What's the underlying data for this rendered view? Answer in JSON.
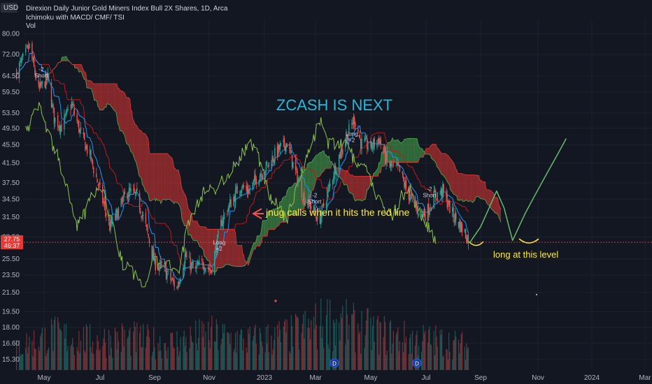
{
  "header": {
    "currency": "USD",
    "title": "Direxion Daily Junior Gold Miners Index Bull 2X Shares, 1D, Arca",
    "indicators": "Ichimoku with MACD/ CMF/ TSI",
    "vol_label": "Vol"
  },
  "price_badge": {
    "price": "27.75",
    "countdown": "46:37"
  },
  "colors": {
    "background": "#131722",
    "up": "#26a69a",
    "down": "#ef5350",
    "cloud_bull": "#4caf50",
    "cloud_bear": "#e53935",
    "lagging_line": "#8bc34a",
    "conversion_line": "#2196f3",
    "base_line": "#b71c1c",
    "annotation_teal": "#29b6d8",
    "annotation_yellow": "#ffeb3b",
    "projection": "#66bb6a",
    "badge": "#e53935"
  },
  "annotations": {
    "headline": "ZCASH IS NEXT",
    "red_line_note": "jnug calls when it hits the red line",
    "long_note": "long at this level"
  },
  "chart_data": {
    "type": "candlestick",
    "y_scale": "log",
    "ylim": [
      14.5,
      86
    ],
    "y_ticks": [
      15.3,
      16.6,
      18.0,
      19.5,
      21.5,
      23.5,
      25.5,
      28.5,
      31.5,
      34.5,
      37.5,
      41.5,
      45.5,
      49.5,
      53.5,
      59.5,
      64.5,
      72.0,
      80.0
    ],
    "x_ticks": [
      "May",
      "Jul",
      "Sep",
      "Nov",
      "2023",
      "Mar",
      "May",
      "Jul",
      "Sep",
      "Nov",
      "2024",
      "Mar"
    ],
    "last_price": 27.75,
    "price_path": [
      [
        "2022-04-01",
        66
      ],
      [
        "2022-04-15",
        75
      ],
      [
        "2022-04-25",
        60
      ],
      [
        "2022-05-05",
        64
      ],
      [
        "2022-05-12",
        52
      ],
      [
        "2022-05-20",
        50
      ],
      [
        "2022-05-31",
        56
      ],
      [
        "2022-06-10",
        48
      ],
      [
        "2022-06-20",
        43
      ],
      [
        "2022-07-01",
        36
      ],
      [
        "2022-07-12",
        30
      ],
      [
        "2022-07-20",
        32
      ],
      [
        "2022-08-01",
        36
      ],
      [
        "2022-08-12",
        35
      ],
      [
        "2022-08-22",
        30
      ],
      [
        "2022-09-01",
        25
      ],
      [
        "2022-09-12",
        24
      ],
      [
        "2022-09-26",
        22
      ],
      [
        "2022-10-05",
        26
      ],
      [
        "2022-10-15",
        24
      ],
      [
        "2022-10-25",
        25
      ],
      [
        "2022-11-03",
        24
      ],
      [
        "2022-11-15",
        31
      ],
      [
        "2022-11-25",
        34
      ],
      [
        "2022-12-05",
        37
      ],
      [
        "2022-12-15",
        36
      ],
      [
        "2022-12-25",
        39
      ],
      [
        "2023-01-05",
        41
      ],
      [
        "2023-01-15",
        44
      ],
      [
        "2023-01-27",
        46
      ],
      [
        "2023-02-05",
        40
      ],
      [
        "2023-02-15",
        35
      ],
      [
        "2023-02-25",
        33
      ],
      [
        "2023-03-05",
        31
      ],
      [
        "2023-03-15",
        36
      ],
      [
        "2023-03-25",
        42
      ],
      [
        "2023-04-05",
        48
      ],
      [
        "2023-04-13",
        52
      ],
      [
        "2023-04-20",
        46
      ],
      [
        "2023-05-01",
        45
      ],
      [
        "2023-05-10",
        47
      ],
      [
        "2023-05-20",
        41
      ],
      [
        "2023-06-01",
        40
      ],
      [
        "2023-06-10",
        36
      ],
      [
        "2023-06-20",
        33
      ],
      [
        "2023-07-01",
        32
      ],
      [
        "2023-07-10",
        35
      ],
      [
        "2023-07-20",
        36
      ],
      [
        "2023-07-31",
        32
      ],
      [
        "2023-08-10",
        30
      ],
      [
        "2023-08-20",
        27.75
      ]
    ],
    "projection_path": [
      [
        "2023-08-20",
        27.75
      ],
      [
        "2023-09-01",
        30
      ],
      [
        "2023-09-10",
        33
      ],
      [
        "2023-09-18",
        36
      ],
      [
        "2023-09-26",
        33
      ],
      [
        "2023-10-05",
        28
      ],
      [
        "2023-10-18",
        32
      ],
      [
        "2023-10-28",
        35
      ],
      [
        "2023-11-10",
        39
      ],
      [
        "2023-11-25",
        44
      ],
      [
        "2023-12-03",
        47
      ]
    ],
    "volume_ylim": [
      0,
      25
    ],
    "volume_path": [
      [
        "2022-04-01",
        8
      ],
      [
        "2022-05-10",
        12
      ],
      [
        "2022-06-20",
        10
      ],
      [
        "2022-08-01",
        11
      ],
      [
        "2022-09-15",
        9
      ],
      [
        "2022-11-01",
        12
      ],
      [
        "2022-12-15",
        10
      ],
      [
        "2023-02-01",
        12
      ],
      [
        "2023-03-15",
        17
      ],
      [
        "2023-04-20",
        14
      ],
      [
        "2023-06-01",
        11
      ],
      [
        "2023-07-15",
        10
      ],
      [
        "2023-08-20",
        8
      ]
    ],
    "signals": [
      {
        "date": "2022-04-28",
        "label": "Short",
        "sub": "-2"
      },
      {
        "date": "2022-11-12",
        "label": "Long",
        "sub": "+2"
      },
      {
        "date": "2023-02-28",
        "label": "Short",
        "sub": "-2"
      },
      {
        "date": "2023-04-10",
        "label": "Long",
        "sub": "+2"
      },
      {
        "date": "2023-07-05",
        "label": "Short",
        "sub": "-2"
      }
    ]
  }
}
